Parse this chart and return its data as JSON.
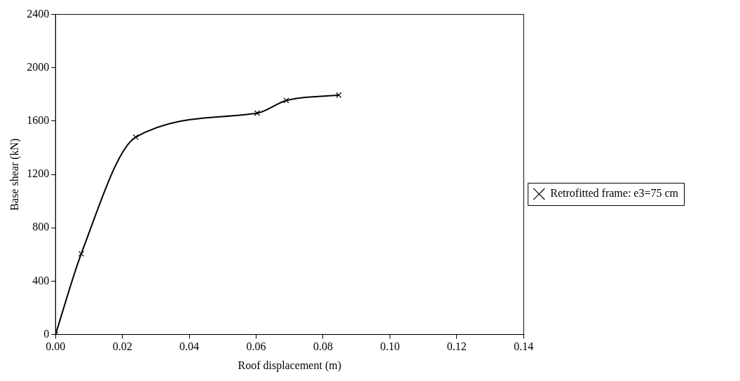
{
  "chart_data": {
    "type": "line",
    "xlabel": "Roof displacement (m)",
    "ylabel": "Base shear (kN)",
    "xlim": [
      0,
      0.14
    ],
    "xticks": [
      {
        "value": 0,
        "label": "0.00"
      },
      {
        "value": 0.02,
        "label": "0.02"
      },
      {
        "value": 0.04,
        "label": "0.04"
      },
      {
        "value": 0.06,
        "label": "0.06"
      },
      {
        "value": 0.08,
        "label": "0.08"
      },
      {
        "value": 0.1,
        "label": "0.10"
      },
      {
        "value": 0.12,
        "label": "0.12"
      },
      {
        "value": 0.14,
        "label": "0.14"
      }
    ],
    "ylim": [
      0,
      2400
    ],
    "yticks": [
      0,
      400,
      800,
      1200,
      1600,
      2000,
      2400
    ],
    "series": [
      {
        "name": "Retrofitted frame: e3=75 cm",
        "color": "#000000",
        "x": [
          0,
          0.0077,
          0.024,
          0.0603,
          0.069,
          0.0847
        ],
        "values": [
          0,
          605,
          1480,
          1660,
          1755,
          1795
        ]
      }
    ],
    "marker": "cross",
    "line_style": "solid",
    "legend": "right",
    "grid": false
  }
}
